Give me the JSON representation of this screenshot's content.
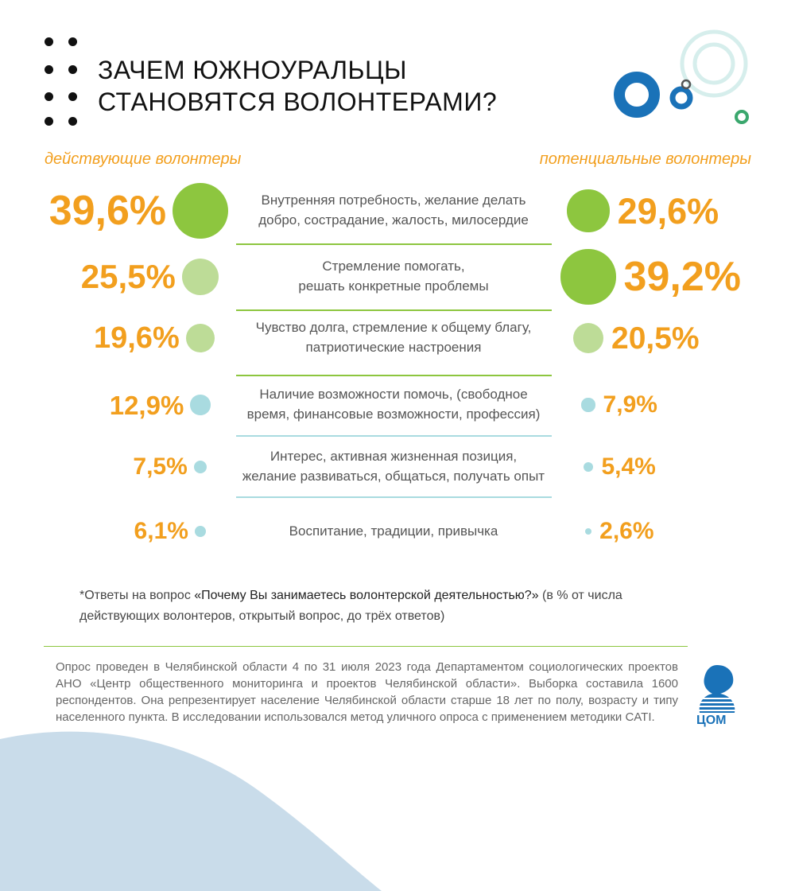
{
  "header": {
    "title_lines": [
      "ЗАЧЕМ ЮЖНОУРАЛЬЦЫ",
      "СТАНОВЯТСЯ ВОЛОНТЕРАМИ?"
    ]
  },
  "colors": {
    "accent_orange": "#f29f1e",
    "green_strong": "#8dc63f",
    "green_light": "#bddc97",
    "teal_light": "#a9dbe0",
    "blue_brand": "#1a72b8"
  },
  "chart_data": {
    "type": "bubble",
    "series": [
      {
        "name": "действующие волонтеры",
        "values": [
          39.6,
          25.5,
          19.6,
          12.9,
          7.5,
          6.1
        ]
      },
      {
        "name": "потенциальные волонтеры",
        "values": [
          29.6,
          39.2,
          20.5,
          7.9,
          5.4,
          2.6
        ]
      }
    ],
    "categories": [
      "Внутренняя потребность, желание делать добро, сострадание, жалость, милосердие",
      "Стремление помогать, решать конкретные проблемы",
      "Чувство долга, стремление к общему благу, патриотические настроения",
      "Наличие возможности помочь, (свободное время, финансовые возможности, профессия)",
      "Интерес, активная жизненная позиция, желание развиваться, общаться, получать опыт",
      "Воспитание, традиции, привычка"
    ],
    "category_lines": [
      [
        "Внутренняя потребность, желание делать",
        "добро, сострадание, жалость, милосердие"
      ],
      [
        "Стремление помогать,",
        "решать конкретные проблемы"
      ],
      [
        "Чувство долга, стремление к общему благу,",
        "патриотические настроения"
      ],
      [
        "Наличие возможности помочь, (свободное",
        "время, финансовые возможности, профессия)"
      ],
      [
        "Интерес, активная жизненная позиция,",
        "желание развиваться, общаться, получать опыт"
      ],
      [
        "Воспитание, традиции, привычка"
      ]
    ],
    "labels_left": [
      "39,6%",
      "25,5%",
      "19,6%",
      "12,9%",
      "7,5%",
      "6,1%"
    ],
    "labels_right": [
      "29,6%",
      "39,2%",
      "20,5%",
      "7,9%",
      "5,4%",
      "2,6%"
    ],
    "unit": "%"
  },
  "footnote": {
    "prefix": "*Ответы на вопрос ",
    "question": "«Почему Вы занимаетесь волонтерской деятельностью?»",
    "suffix": " (в % от числа действующих волонтеров, открытый вопрос, до трёх ответов)"
  },
  "methodology": "Опрос проведен в Челябинской области 4 по 31 июля 2023 года Департаментом социологических проектов АНО «Центр общественного мониторинга и проектов Челябинской области». Выборка составила 1600 респондентов. Она репрезентирует население Челябинской области старше 18 лет по полу, возрасту и типу населенного пункта. В исследовании использовался метод уличного опроса с применением методики CATI.",
  "logo": {
    "text": "ЦОМ"
  }
}
